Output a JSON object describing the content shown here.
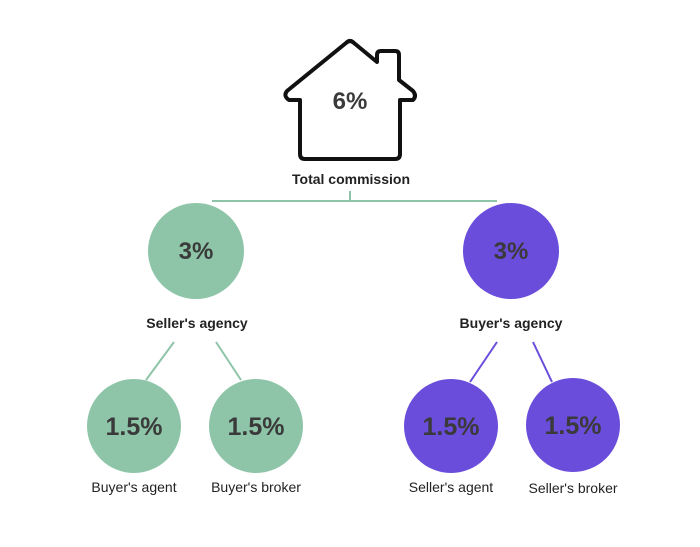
{
  "colors": {
    "green": "#8ec5a8",
    "purple": "#6b4ddb",
    "house_stroke": "#111111",
    "text": "#3a3a3a"
  },
  "root": {
    "icon": "house-icon",
    "value": "6%",
    "label": "Total commission"
  },
  "sellers_agency": {
    "value": "3%",
    "label": "Seller's agency",
    "children": [
      {
        "value": "1.5%",
        "label": "Buyer's agent"
      },
      {
        "value": "1.5%",
        "label": "Buyer's broker"
      }
    ]
  },
  "buyers_agency": {
    "value": "3%",
    "label": "Buyer's agency",
    "children": [
      {
        "value": "1.5%",
        "label": "Seller's agent"
      },
      {
        "value": "1.5%",
        "label": "Seller's broker"
      }
    ]
  }
}
